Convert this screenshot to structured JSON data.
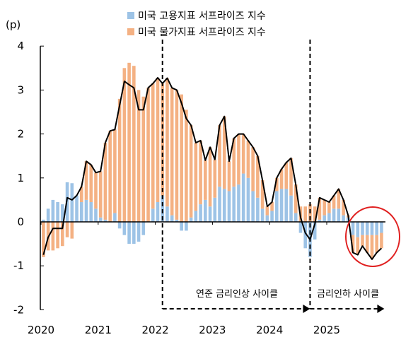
{
  "chart_data": {
    "type": "bar",
    "stacked": true,
    "title": "",
    "unit_label": "(p)",
    "ylim": [
      -2,
      4
    ],
    "yticks": [
      "-2",
      "-1",
      "0",
      "1",
      "2",
      "3",
      "4"
    ],
    "xticks": [
      "2020",
      "2021",
      "2022",
      "2023",
      "2024",
      "2025"
    ],
    "legend": "top-center",
    "grid": false,
    "x": [
      "2020-01",
      "2020-02",
      "2020-03",
      "2020-04",
      "2020-05",
      "2020-06",
      "2020-07",
      "2020-08",
      "2020-09",
      "2020-10",
      "2020-11",
      "2020-12",
      "2021-01",
      "2021-02",
      "2021-03",
      "2021-04",
      "2021-05",
      "2021-06",
      "2021-07",
      "2021-08",
      "2021-09",
      "2021-10",
      "2021-11",
      "2021-12",
      "2022-01",
      "2022-02",
      "2022-03",
      "2022-04",
      "2022-05",
      "2022-06",
      "2022-07",
      "2022-08",
      "2022-09",
      "2022-10",
      "2022-11",
      "2022-12",
      "2023-01",
      "2023-02",
      "2023-03",
      "2023-04",
      "2023-05",
      "2023-06",
      "2023-07",
      "2023-08",
      "2023-09",
      "2023-10",
      "2023-11",
      "2023-12",
      "2024-01",
      "2024-02",
      "2024-03",
      "2024-04",
      "2024-05",
      "2024-06",
      "2024-07",
      "2024-08",
      "2024-09",
      "2024-10",
      "2024-11",
      "2024-12",
      "2025-01",
      "2025-02",
      "2025-03",
      "2025-04",
      "2025-05",
      "2025-06",
      "2025-07",
      "2025-08",
      "2025-09",
      "2025-10",
      "2025-11",
      "2025-12"
    ],
    "series": [
      {
        "name": "미국 고용지표 서프라이즈 지수",
        "type": "bar",
        "color": "#9DC3E6",
        "values": [
          0.05,
          0.3,
          0.5,
          0.45,
          0.4,
          0.9,
          0.88,
          0.6,
          0.45,
          0.5,
          0.45,
          0.3,
          0.1,
          0.05,
          0.0,
          0.2,
          -0.15,
          -0.3,
          -0.5,
          -0.5,
          -0.45,
          -0.3,
          0.0,
          0.3,
          0.45,
          0.6,
          0.35,
          0.15,
          0.05,
          -0.2,
          -0.2,
          0.1,
          0.25,
          0.4,
          0.5,
          0.35,
          0.55,
          0.8,
          0.75,
          0.7,
          0.8,
          0.85,
          1.1,
          1.0,
          0.7,
          0.55,
          0.3,
          0.15,
          0.25,
          0.7,
          0.75,
          0.75,
          0.6,
          0.2,
          -0.25,
          -0.6,
          -0.8,
          -0.4,
          0.05,
          0.15,
          0.2,
          0.3,
          0.3,
          0.15,
          0.1,
          -0.3,
          -0.35,
          -0.3,
          -0.3,
          -0.3,
          -0.3,
          -0.25
        ]
      },
      {
        "name": "미국 물가지표 서프라이즈 지수",
        "type": "bar",
        "color": "#F4B183",
        "values": [
          -0.8,
          -0.65,
          -0.65,
          -0.6,
          -0.55,
          -0.35,
          -0.38,
          0.0,
          0.35,
          0.88,
          0.85,
          0.82,
          1.05,
          1.75,
          2.07,
          1.9,
          2.8,
          3.5,
          3.62,
          3.55,
          3.0,
          2.85,
          3.05,
          2.85,
          2.83,
          2.55,
          2.92,
          2.9,
          2.95,
          2.9,
          2.55,
          2.1,
          1.55,
          1.45,
          0.9,
          1.35,
          0.87,
          1.4,
          1.65,
          0.68,
          1.1,
          1.15,
          0.9,
          0.85,
          1.0,
          0.95,
          0.65,
          0.2,
          0.2,
          0.3,
          0.45,
          0.6,
          0.85,
          0.65,
          0.35,
          0.35,
          0.4,
          0.35,
          0.5,
          0.35,
          0.25,
          0.3,
          0.45,
          0.35,
          0.05,
          -0.4,
          -0.4,
          -0.25,
          -0.4,
          -0.55,
          -0.4,
          -0.35
        ]
      },
      {
        "type": "line",
        "color": "#000000",
        "values": [
          -0.75,
          -0.35,
          -0.15,
          -0.15,
          -0.15,
          0.55,
          0.5,
          0.6,
          0.8,
          1.38,
          1.3,
          1.12,
          1.15,
          1.8,
          2.07,
          2.1,
          2.65,
          3.2,
          3.12,
          3.05,
          2.55,
          2.55,
          3.05,
          3.15,
          3.28,
          3.15,
          3.27,
          3.05,
          3.0,
          2.7,
          2.35,
          2.2,
          1.8,
          1.85,
          1.4,
          1.7,
          1.42,
          2.2,
          2.4,
          1.38,
          1.9,
          2.0,
          2.0,
          1.85,
          1.7,
          1.5,
          0.95,
          0.35,
          0.45,
          1.0,
          1.2,
          1.35,
          1.45,
          0.85,
          0.1,
          -0.25,
          -0.4,
          -0.05,
          0.55,
          0.5,
          0.45,
          0.6,
          0.75,
          0.5,
          0.15,
          -0.7,
          -0.75,
          -0.55,
          -0.7,
          -0.85,
          -0.7,
          -0.6
        ]
      }
    ],
    "reference_lines": [
      "2022-02",
      "2024-09"
    ],
    "annotations": [
      {
        "text": "연준 금리인상 사이클"
      },
      {
        "text": "금리인하 사이클"
      }
    ],
    "highlight_color": "#E02020"
  }
}
